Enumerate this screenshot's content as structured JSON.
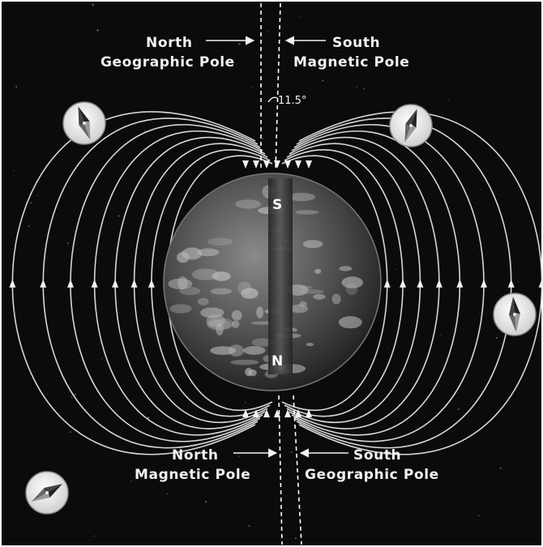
{
  "labels": {
    "north_geographic_top": [
      "North",
      "Geographic Pole"
    ],
    "south_magnetic_top": [
      "South",
      "Magnetic Pole"
    ],
    "north_magnetic_bottom": [
      "North",
      "Magnetic Pole"
    ],
    "south_geographic_bottom": [
      "South",
      "Geographic Pole"
    ],
    "tilt_angle": "11.5°",
    "magnet_top_pole": "S",
    "magnet_bottom_pole": "N"
  },
  "colors": {
    "space_background": "#0b0b0b",
    "field_lines": "#e8e8e8",
    "label_text": "#f2f2f2",
    "earth_dark": "#2a2a2a",
    "earth_light": "#9a9a9a",
    "magnet_bar": "#3a3a3a"
  },
  "icons": {
    "compass": "compass-icon",
    "earth": "earth-globe",
    "bar_magnet": "bar-magnet"
  }
}
